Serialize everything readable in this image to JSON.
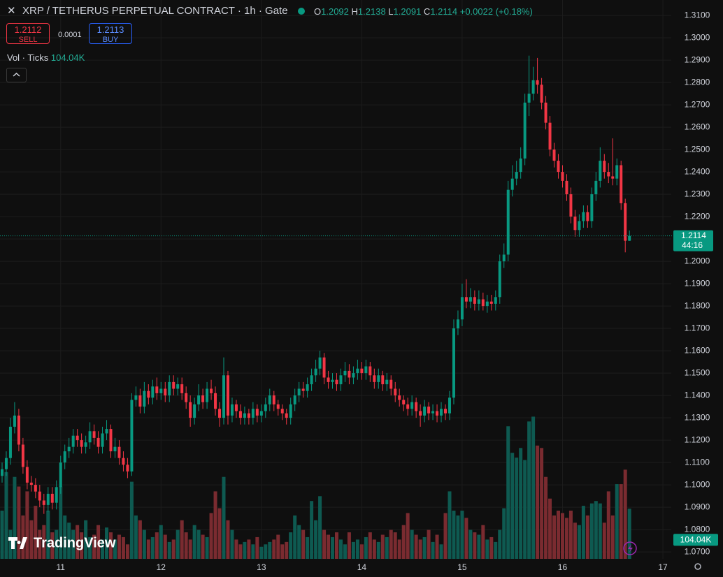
{
  "header": {
    "symbol": "XRP / TETHERUS PERPETUAL CONTRACT · 1h · Gate",
    "o": "O",
    "h": "H",
    "l": "L",
    "c": "C",
    "change": "+0.0022 (+0.18%)",
    "sell_price": "1.2112",
    "sell": "SELL",
    "spread": "0.0001",
    "buy_price": "1.2113",
    "buy": "BUY",
    "volume_label": "Vol · Ticks",
    "countdown": "44:16",
    "logo": "TradingView"
  },
  "chart_data": {
    "type": "candlestick",
    "open": [
      1.104,
      1.107,
      1.112,
      1.126,
      1.131,
      1.118,
      1.108,
      1.101,
      1.1,
      1.097,
      1.093,
      1.091,
      1.096,
      1.092,
      1.099,
      1.11,
      1.115,
      1.117,
      1.122,
      1.12,
      1.117,
      1.119,
      1.124,
      1.121,
      1.117,
      1.123,
      1.125,
      1.115,
      1.117,
      1.112,
      1.109,
      1.106,
      1.138,
      1.14,
      1.135,
      1.142,
      1.139,
      1.144,
      1.141,
      1.143,
      1.14,
      1.146,
      1.143,
      1.145,
      1.141,
      1.137,
      1.13,
      1.136,
      1.14,
      1.137,
      1.143,
      1.141,
      1.134,
      1.13,
      1.149,
      1.131,
      1.136,
      1.133,
      1.13,
      1.132,
      1.13,
      1.134,
      1.131,
      1.133,
      1.136,
      1.14,
      1.136,
      1.134,
      1.132,
      1.13,
      1.136,
      1.14,
      1.143,
      1.142,
      1.145,
      1.149,
      1.152,
      1.157,
      1.148,
      1.146,
      1.147,
      1.145,
      1.149,
      1.151,
      1.148,
      1.15,
      1.152,
      1.15,
      1.153,
      1.149,
      1.146,
      1.149,
      1.145,
      1.147,
      1.143,
      1.14,
      1.138,
      1.136,
      1.134,
      1.137,
      1.133,
      1.131,
      1.135,
      1.132,
      1.133,
      1.131,
      1.134,
      1.132,
      1.139,
      1.17,
      1.174,
      1.184,
      1.182,
      1.184,
      1.181,
      1.183,
      1.18,
      1.182,
      1.181,
      1.184,
      1.2,
      1.203,
      1.232,
      1.237,
      1.24,
      1.246,
      1.271,
      1.275,
      1.281,
      1.279,
      1.271,
      1.262,
      1.25,
      1.245,
      1.24,
      1.236,
      1.23,
      1.22,
      1.214,
      1.218,
      1.222,
      1.218,
      1.23,
      1.236,
      1.245,
      1.24,
      1.238,
      1.237,
      1.243,
      1.226,
      1.2092
    ],
    "high": [
      1.11,
      1.115,
      1.13,
      1.137,
      1.134,
      1.121,
      1.111,
      1.104,
      1.103,
      1.1,
      1.096,
      1.099,
      1.099,
      1.102,
      1.113,
      1.118,
      1.121,
      1.125,
      1.125,
      1.123,
      1.122,
      1.128,
      1.127,
      1.124,
      1.126,
      1.129,
      1.127,
      1.121,
      1.12,
      1.115,
      1.112,
      1.141,
      1.144,
      1.143,
      1.146,
      1.145,
      1.147,
      1.148,
      1.146,
      1.146,
      1.149,
      1.149,
      1.148,
      1.148,
      1.144,
      1.14,
      1.139,
      1.145,
      1.143,
      1.146,
      1.147,
      1.144,
      1.137,
      1.157,
      1.151,
      1.139,
      1.138,
      1.136,
      1.135,
      1.134,
      1.137,
      1.136,
      1.136,
      1.139,
      1.143,
      1.142,
      1.138,
      1.136,
      1.134,
      1.139,
      1.143,
      1.146,
      1.146,
      1.148,
      1.152,
      1.156,
      1.16,
      1.159,
      1.151,
      1.15,
      1.15,
      1.152,
      1.155,
      1.154,
      1.153,
      1.156,
      1.155,
      1.156,
      1.155,
      1.152,
      1.152,
      1.151,
      1.15,
      1.149,
      1.146,
      1.143,
      1.14,
      1.139,
      1.14,
      1.139,
      1.136,
      1.138,
      1.137,
      1.136,
      1.136,
      1.137,
      1.136,
      1.142,
      1.174,
      1.178,
      1.19,
      1.192,
      1.188,
      1.187,
      1.187,
      1.186,
      1.185,
      1.185,
      1.187,
      1.203,
      1.208,
      1.236,
      1.243,
      1.245,
      1.251,
      1.275,
      1.292,
      1.287,
      1.291,
      1.282,
      1.274,
      1.265,
      1.253,
      1.248,
      1.243,
      1.239,
      1.233,
      1.223,
      1.221,
      1.225,
      1.225,
      1.233,
      1.24,
      1.251,
      1.248,
      1.244,
      1.255,
      1.246,
      1.245,
      1.228,
      1.2138
    ],
    "low": [
      1.101,
      1.104,
      1.109,
      1.123,
      1.115,
      1.105,
      1.098,
      1.097,
      1.094,
      1.09,
      1.087,
      1.088,
      1.089,
      1.089,
      1.096,
      1.107,
      1.112,
      1.114,
      1.117,
      1.114,
      1.114,
      1.116,
      1.118,
      1.114,
      1.114,
      1.12,
      1.112,
      1.112,
      1.109,
      1.106,
      1.103,
      1.104,
      1.135,
      1.132,
      1.132,
      1.136,
      1.136,
      1.138,
      1.138,
      1.137,
      1.137,
      1.14,
      1.14,
      1.138,
      1.134,
      1.126,
      1.127,
      1.133,
      1.134,
      1.134,
      1.138,
      1.131,
      1.126,
      1.127,
      1.127,
      1.128,
      1.13,
      1.127,
      1.127,
      1.127,
      1.127,
      1.128,
      1.128,
      1.13,
      1.133,
      1.133,
      1.131,
      1.129,
      1.127,
      1.127,
      1.133,
      1.137,
      1.139,
      1.139,
      1.142,
      1.146,
      1.149,
      1.145,
      1.143,
      1.143,
      1.142,
      1.142,
      1.146,
      1.145,
      1.145,
      1.147,
      1.147,
      1.147,
      1.146,
      1.143,
      1.143,
      1.142,
      1.142,
      1.14,
      1.137,
      1.135,
      1.133,
      1.131,
      1.131,
      1.13,
      1.126,
      1.128,
      1.129,
      1.129,
      1.128,
      1.128,
      1.129,
      1.129,
      1.136,
      1.167,
      1.171,
      1.179,
      1.179,
      1.178,
      1.178,
      1.178,
      1.177,
      1.178,
      1.178,
      1.181,
      1.197,
      1.2,
      1.229,
      1.234,
      1.237,
      1.243,
      1.265,
      1.272,
      1.275,
      1.268,
      1.259,
      1.247,
      1.242,
      1.237,
      1.233,
      1.227,
      1.217,
      1.211,
      1.211,
      1.215,
      1.215,
      1.215,
      1.227,
      1.233,
      1.237,
      1.235,
      1.234,
      1.234,
      1.223,
      1.204,
      1.2091
    ],
    "close": [
      1.107,
      1.112,
      1.126,
      1.131,
      1.118,
      1.108,
      1.101,
      1.1,
      1.097,
      1.093,
      1.091,
      1.096,
      1.092,
      1.099,
      1.11,
      1.115,
      1.117,
      1.122,
      1.12,
      1.117,
      1.119,
      1.124,
      1.121,
      1.117,
      1.123,
      1.125,
      1.115,
      1.117,
      1.112,
      1.109,
      1.106,
      1.138,
      1.14,
      1.135,
      1.142,
      1.139,
      1.144,
      1.141,
      1.143,
      1.14,
      1.146,
      1.143,
      1.145,
      1.141,
      1.137,
      1.13,
      1.136,
      1.14,
      1.137,
      1.143,
      1.141,
      1.134,
      1.13,
      1.149,
      1.131,
      1.136,
      1.133,
      1.13,
      1.132,
      1.13,
      1.134,
      1.131,
      1.133,
      1.136,
      1.14,
      1.136,
      1.134,
      1.132,
      1.13,
      1.136,
      1.14,
      1.143,
      1.142,
      1.145,
      1.149,
      1.152,
      1.157,
      1.148,
      1.146,
      1.147,
      1.145,
      1.149,
      1.151,
      1.148,
      1.15,
      1.152,
      1.15,
      1.153,
      1.149,
      1.146,
      1.149,
      1.145,
      1.147,
      1.143,
      1.14,
      1.138,
      1.136,
      1.134,
      1.137,
      1.133,
      1.131,
      1.135,
      1.132,
      1.133,
      1.131,
      1.134,
      1.132,
      1.139,
      1.17,
      1.174,
      1.184,
      1.182,
      1.184,
      1.181,
      1.183,
      1.18,
      1.182,
      1.181,
      1.184,
      1.2,
      1.203,
      1.232,
      1.237,
      1.24,
      1.246,
      1.271,
      1.275,
      1.281,
      1.279,
      1.271,
      1.262,
      1.25,
      1.245,
      1.24,
      1.236,
      1.23,
      1.22,
      1.214,
      1.218,
      1.222,
      1.218,
      1.23,
      1.236,
      1.245,
      1.24,
      1.238,
      1.237,
      1.243,
      1.226,
      1.2092,
      1.2114
    ],
    "volume": [
      100000,
      180000,
      60000,
      170000,
      150000,
      90000,
      140000,
      80000,
      110000,
      60000,
      70000,
      100000,
      55000,
      60000,
      150000,
      90000,
      75000,
      60000,
      70000,
      55000,
      80000,
      45000,
      50000,
      70000,
      40000,
      65000,
      55000,
      40000,
      50000,
      45000,
      30000,
      160000,
      90000,
      80000,
      60000,
      40000,
      45000,
      55000,
      70000,
      50000,
      35000,
      40000,
      60000,
      80000,
      55000,
      40000,
      70000,
      60000,
      50000,
      45000,
      95000,
      140000,
      105000,
      170000,
      80000,
      60000,
      40000,
      30000,
      35000,
      40000,
      30000,
      45000,
      25000,
      30000,
      35000,
      40000,
      50000,
      30000,
      35000,
      55000,
      90000,
      70000,
      60000,
      45000,
      120000,
      80000,
      130000,
      60000,
      50000,
      45000,
      55000,
      40000,
      30000,
      55000,
      35000,
      40000,
      30000,
      45000,
      55000,
      40000,
      35000,
      50000,
      45000,
      60000,
      55000,
      40000,
      70000,
      95000,
      60000,
      50000,
      40000,
      45000,
      60000,
      35000,
      50000,
      30000,
      95000,
      140000,
      100000,
      90000,
      100000,
      85000,
      60000,
      55000,
      50000,
      70000,
      40000,
      45000,
      35000,
      60000,
      105000,
      275000,
      220000,
      210000,
      230000,
      205000,
      285000,
      295000,
      235000,
      230000,
      170000,
      125000,
      90000,
      100000,
      95000,
      85000,
      100000,
      75000,
      70000,
      110000,
      90000,
      115000,
      120000,
      115000,
      75000,
      140000,
      90000,
      155000,
      155000,
      185000,
      104040
    ],
    "last_volume_label": "104.04K",
    "up_color": "#089981",
    "down_color": "#f23645",
    "volume_up_color": "#0e5a51",
    "volume_down_color": "#7a2b30",
    "xlim": [
      -0.5,
      160
    ],
    "xticks": [
      {
        "value": 14,
        "label": "11"
      },
      {
        "value": 38,
        "label": "12"
      },
      {
        "value": 62,
        "label": "13"
      },
      {
        "value": 86,
        "label": "14"
      },
      {
        "value": 110,
        "label": "15"
      },
      {
        "value": 134,
        "label": "16"
      },
      {
        "value": 158,
        "label": "17"
      }
    ],
    "ylim": [
      1.0669,
      1.3169
    ],
    "yticks": [
      {
        "value": 1.07,
        "label": "1.0700"
      },
      {
        "value": 1.08,
        "label": "1.0800"
      },
      {
        "value": 1.09,
        "label": "1.0900"
      },
      {
        "value": 1.1,
        "label": "1.1000"
      },
      {
        "value": 1.11,
        "label": "1.1100"
      },
      {
        "value": 1.12,
        "label": "1.1200"
      },
      {
        "value": 1.13,
        "label": "1.1300"
      },
      {
        "value": 1.14,
        "label": "1.1400"
      },
      {
        "value": 1.15,
        "label": "1.1500"
      },
      {
        "value": 1.16,
        "label": "1.1600"
      },
      {
        "value": 1.17,
        "label": "1.1700"
      },
      {
        "value": 1.18,
        "label": "1.1800"
      },
      {
        "value": 1.19,
        "label": "1.1900"
      },
      {
        "value": 1.2,
        "label": "1.2000"
      },
      {
        "value": 1.21,
        "label": "1.2100"
      },
      {
        "value": 1.22,
        "label": "1.2200"
      },
      {
        "value": 1.23,
        "label": "1.2300"
      },
      {
        "value": 1.24,
        "label": "1.2400"
      },
      {
        "value": 1.25,
        "label": "1.2500"
      },
      {
        "value": 1.26,
        "label": "1.2600"
      },
      {
        "value": 1.27,
        "label": "1.2700"
      },
      {
        "value": 1.28,
        "label": "1.2800"
      },
      {
        "value": 1.29,
        "label": "1.2900"
      },
      {
        "value": 1.3,
        "label": "1.3000"
      },
      {
        "value": 1.31,
        "label": "1.3100"
      }
    ],
    "grid": true
  }
}
